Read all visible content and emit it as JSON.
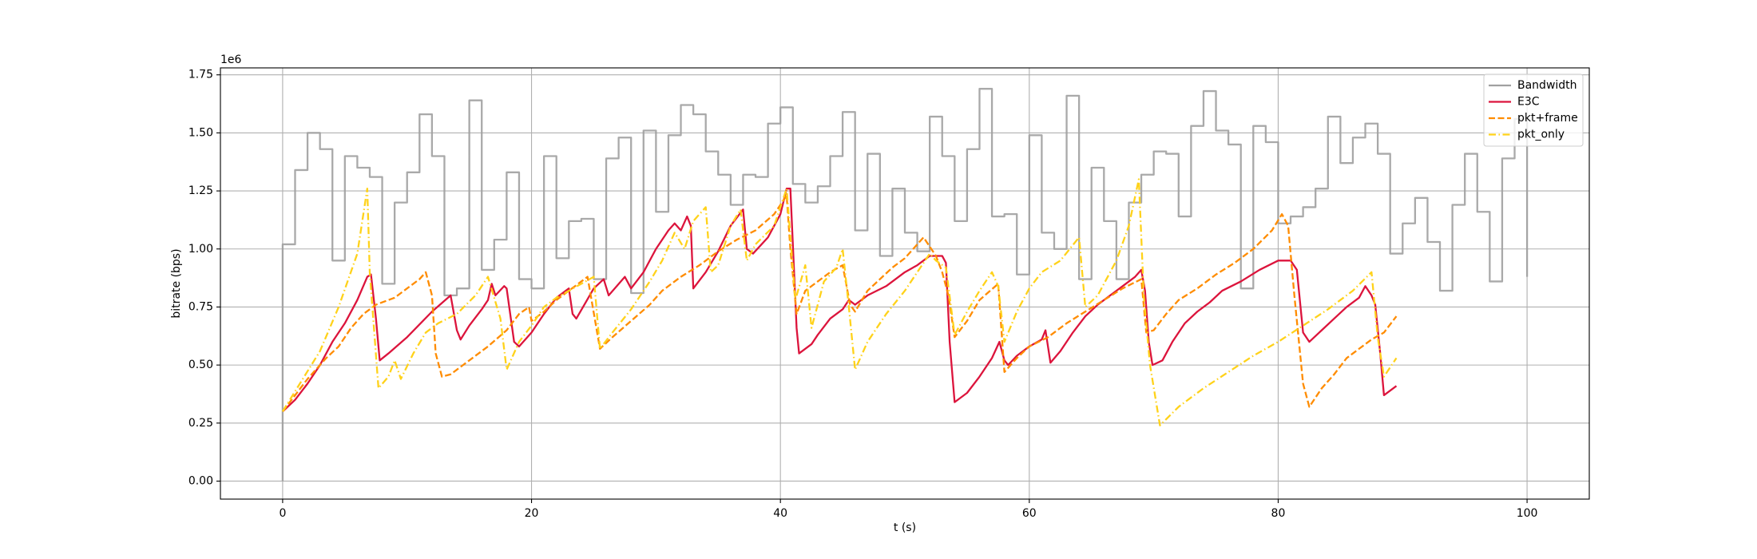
{
  "chart_data": {
    "type": "line",
    "x_label": "t (s)",
    "y_label": "bitrate (bps)",
    "y_scale_label": "1e6",
    "xlim": [
      -5,
      105
    ],
    "xticks": [
      0,
      20,
      40,
      60,
      80,
      100
    ],
    "ylim": [
      -77500,
      1780000
    ],
    "yticks": [
      {
        "value": 0,
        "label": "0.00"
      },
      {
        "value": 250000,
        "label": "0.25"
      },
      {
        "value": 500000,
        "label": "0.50"
      },
      {
        "value": 750000,
        "label": "0.75"
      },
      {
        "value": 1000000,
        "label": "1.00"
      },
      {
        "value": 1250000,
        "label": "1.25"
      },
      {
        "value": 1500000,
        "label": "1.50"
      },
      {
        "value": 1750000,
        "label": "1.75"
      }
    ],
    "grid": true,
    "legend": "upper right",
    "series": [
      {
        "name": "Bandwidth",
        "color": "#a0a0a0",
        "linestyle": "solid",
        "drawstyle": "steps-post",
        "x": [
          0,
          0,
          1,
          2,
          3,
          4,
          5,
          6,
          7,
          8,
          9,
          10,
          11,
          12,
          13,
          14,
          15,
          16,
          17,
          18,
          19,
          20,
          21,
          22,
          23,
          24,
          25,
          26,
          27,
          28,
          29,
          30,
          31,
          32,
          33,
          34,
          35,
          36,
          37,
          38,
          39,
          40,
          41,
          42,
          43,
          44,
          45,
          46,
          47,
          48,
          49,
          50,
          51,
          52,
          53,
          54,
          55,
          56,
          57,
          58,
          59,
          60,
          61,
          62,
          63,
          64,
          65,
          66,
          67,
          68,
          69,
          70,
          71,
          72,
          73,
          74,
          75,
          76,
          77,
          78,
          79,
          80,
          81,
          82,
          83,
          84,
          85,
          86,
          87,
          88,
          89,
          90,
          91,
          92,
          93,
          94,
          95,
          96,
          97,
          98,
          99,
          100
        ],
        "values": [
          0,
          1020000,
          1340000,
          1500000,
          1430000,
          950000,
          1400000,
          1350000,
          1310000,
          850000,
          1200000,
          1330000,
          1580000,
          1400000,
          800000,
          830000,
          1640000,
          910000,
          1040000,
          1330000,
          870000,
          830000,
          1400000,
          960000,
          1120000,
          1130000,
          870000,
          1390000,
          1480000,
          810000,
          1510000,
          1160000,
          1490000,
          1620000,
          1580000,
          1420000,
          1320000,
          1190000,
          1320000,
          1310000,
          1540000,
          1610000,
          1280000,
          1200000,
          1270000,
          1400000,
          1590000,
          1080000,
          1410000,
          970000,
          1260000,
          1070000,
          990000,
          1570000,
          1400000,
          1120000,
          1430000,
          1690000,
          1140000,
          1150000,
          890000,
          1490000,
          1070000,
          1000000,
          1660000,
          870000,
          1350000,
          1120000,
          870000,
          1200000,
          1320000,
          1420000,
          1410000,
          1140000,
          1530000,
          1680000,
          1510000,
          1450000,
          830000,
          1530000,
          1460000,
          1110000,
          1140000,
          1180000,
          1260000,
          1570000,
          1370000,
          1480000,
          1540000,
          1410000,
          980000,
          1110000,
          1220000,
          1030000,
          820000,
          1190000,
          1410000,
          1160000,
          860000,
          1390000,
          1560000,
          880000
        ]
      },
      {
        "name": "E3C",
        "color": "#dc143c",
        "linestyle": "solid",
        "x": [
          0,
          1,
          2,
          3,
          4,
          5,
          6,
          6.8,
          7.1,
          7.5,
          7.8,
          8.5,
          10,
          12,
          13.5,
          14,
          14.3,
          15,
          16,
          16.5,
          16.8,
          17.1,
          17.8,
          18,
          18.6,
          19,
          20,
          21,
          22,
          23,
          23.3,
          23.6,
          25,
          25.8,
          26.2,
          27.5,
          28,
          29,
          30,
          31,
          31.5,
          32,
          32.5,
          32.8,
          33,
          34,
          35,
          36,
          37,
          37.3,
          37.8,
          39,
          40,
          40.5,
          40.8,
          41.3,
          41.5,
          42.5,
          43,
          44,
          45,
          45.5,
          46,
          47,
          48.5,
          50,
          51,
          52,
          53,
          53.3,
          53.6,
          54,
          55,
          56,
          57,
          57.6,
          58,
          58.3,
          59,
          60,
          61,
          61.3,
          61.7,
          62.5,
          63.5,
          64.5,
          65.5,
          66.5,
          67.5,
          68.5,
          69,
          69.3,
          69.6,
          69.9,
          70.7,
          71.5,
          72.5,
          73.5,
          74.5,
          75.5,
          77,
          78.5,
          80,
          81,
          81.5,
          82,
          82.5,
          83.5,
          84.5,
          85.5,
          86.5,
          87,
          87.5,
          87.8,
          88.2,
          88.5,
          89.5
        ],
        "values": [
          300000,
          350000,
          420000,
          500000,
          600000,
          680000,
          780000,
          880000,
          890000,
          700000,
          520000,
          550000,
          620000,
          730000,
          800000,
          650000,
          610000,
          670000,
          740000,
          780000,
          850000,
          800000,
          840000,
          830000,
          600000,
          580000,
          640000,
          720000,
          790000,
          830000,
          720000,
          700000,
          830000,
          870000,
          800000,
          880000,
          830000,
          900000,
          1000000,
          1080000,
          1110000,
          1080000,
          1140000,
          1100000,
          830000,
          900000,
          990000,
          1100000,
          1170000,
          1000000,
          980000,
          1050000,
          1150000,
          1260000,
          1260000,
          660000,
          550000,
          590000,
          630000,
          700000,
          740000,
          780000,
          760000,
          800000,
          840000,
          900000,
          930000,
          970000,
          970000,
          940000,
          600000,
          340000,
          380000,
          450000,
          530000,
          600000,
          520000,
          500000,
          540000,
          580000,
          610000,
          650000,
          510000,
          560000,
          640000,
          710000,
          760000,
          800000,
          840000,
          880000,
          910000,
          820000,
          600000,
          500000,
          520000,
          600000,
          680000,
          730000,
          770000,
          820000,
          860000,
          910000,
          950000,
          950000,
          910000,
          640000,
          600000,
          650000,
          700000,
          750000,
          790000,
          840000,
          800000,
          760000,
          550000,
          370000,
          410000
        ]
      },
      {
        "name": "pkt+frame",
        "color": "#ff8c00",
        "linestyle": "dashed",
        "x": [
          0,
          2,
          3.5,
          4.5,
          5.5,
          6.5,
          7.5,
          9,
          11,
          11.5,
          12,
          12.3,
          12.8,
          13.5,
          15,
          16.5,
          18,
          19,
          19.8,
          20,
          21,
          22,
          23.5,
          24.5,
          25.5,
          26.5,
          28,
          29.5,
          30.5,
          32,
          33.5,
          35,
          36.5,
          38,
          39.5,
          40.5,
          40.8,
          41.3,
          42,
          43,
          44,
          45,
          45.6,
          46,
          47,
          48,
          49,
          50,
          51,
          51.5,
          52.5,
          53,
          53.5,
          54,
          55,
          56,
          57.5,
          58,
          59,
          60,
          61.5,
          63,
          64.5,
          66,
          67.5,
          69,
          69.4,
          70,
          71,
          72,
          73.5,
          75,
          76.5,
          78,
          79.5,
          80.3,
          80.8,
          81.3,
          82,
          82.5,
          83.5,
          84.5,
          85.5,
          86.5,
          87.5,
          88.5,
          89.5
        ],
        "values": [
          300000,
          440000,
          530000,
          580000,
          660000,
          720000,
          760000,
          790000,
          870000,
          900000,
          800000,
          550000,
          450000,
          460000,
          520000,
          580000,
          650000,
          720000,
          750000,
          690000,
          730000,
          780000,
          840000,
          880000,
          570000,
          620000,
          690000,
          760000,
          820000,
          880000,
          930000,
          990000,
          1040000,
          1080000,
          1150000,
          1230000,
          1000000,
          720000,
          820000,
          860000,
          900000,
          930000,
          760000,
          730000,
          820000,
          870000,
          920000,
          960000,
          1020000,
          1050000,
          970000,
          900000,
          800000,
          620000,
          690000,
          780000,
          850000,
          470000,
          530000,
          580000,
          620000,
          680000,
          730000,
          780000,
          830000,
          870000,
          640000,
          650000,
          720000,
          780000,
          830000,
          890000,
          940000,
          1000000,
          1080000,
          1150000,
          1100000,
          800000,
          420000,
          320000,
          400000,
          460000,
          530000,
          570000,
          610000,
          640000,
          710000
        ]
      },
      {
        "name": "pkt_only",
        "color": "#ffd21a",
        "linestyle": "dashdot",
        "x": [
          0,
          1.5,
          3,
          4.5,
          6,
          6.8,
          7,
          7.7,
          8.5,
          9,
          9.5,
          10.5,
          11.5,
          12.5,
          14,
          15.5,
          16.5,
          17.5,
          18,
          19,
          20,
          21,
          22,
          23,
          24,
          25,
          25.5,
          26.5,
          28,
          29.5,
          30.5,
          31.5,
          32.3,
          33,
          34,
          34.4,
          35,
          36,
          36.8,
          37.3,
          38,
          39.5,
          40.5,
          41.2,
          42,
          42.5,
          43.5,
          44.5,
          45,
          45.5,
          46,
          47,
          48.5,
          50,
          51,
          52,
          52.5,
          53.3,
          54,
          55,
          56,
          57,
          57.5,
          58,
          59,
          60,
          61,
          62.5,
          64,
          64.5,
          65.5,
          67,
          68,
          68.8,
          69.2,
          69.7,
          70.5,
          72,
          74,
          76,
          78,
          80,
          82,
          84,
          86,
          87.5,
          88,
          88.5,
          89.5
        ],
        "values": [
          300000,
          430000,
          560000,
          750000,
          980000,
          1260000,
          900000,
          400000,
          450000,
          520000,
          440000,
          550000,
          640000,
          680000,
          720000,
          800000,
          880000,
          700000,
          480000,
          600000,
          670000,
          750000,
          790000,
          820000,
          850000,
          880000,
          570000,
          640000,
          740000,
          860000,
          950000,
          1070000,
          1000000,
          1120000,
          1180000,
          900000,
          930000,
          1100000,
          1170000,
          950000,
          1020000,
          1100000,
          1260000,
          780000,
          930000,
          660000,
          860000,
          920000,
          1000000,
          750000,
          480000,
          600000,
          720000,
          820000,
          900000,
          980000,
          950000,
          920000,
          630000,
          730000,
          820000,
          900000,
          840000,
          600000,
          730000,
          830000,
          900000,
          950000,
          1050000,
          750000,
          800000,
          950000,
          1100000,
          1300000,
          800000,
          500000,
          240000,
          320000,
          400000,
          470000,
          540000,
          600000,
          670000,
          740000,
          820000,
          900000,
          620000,
          450000,
          530000
        ]
      }
    ]
  }
}
